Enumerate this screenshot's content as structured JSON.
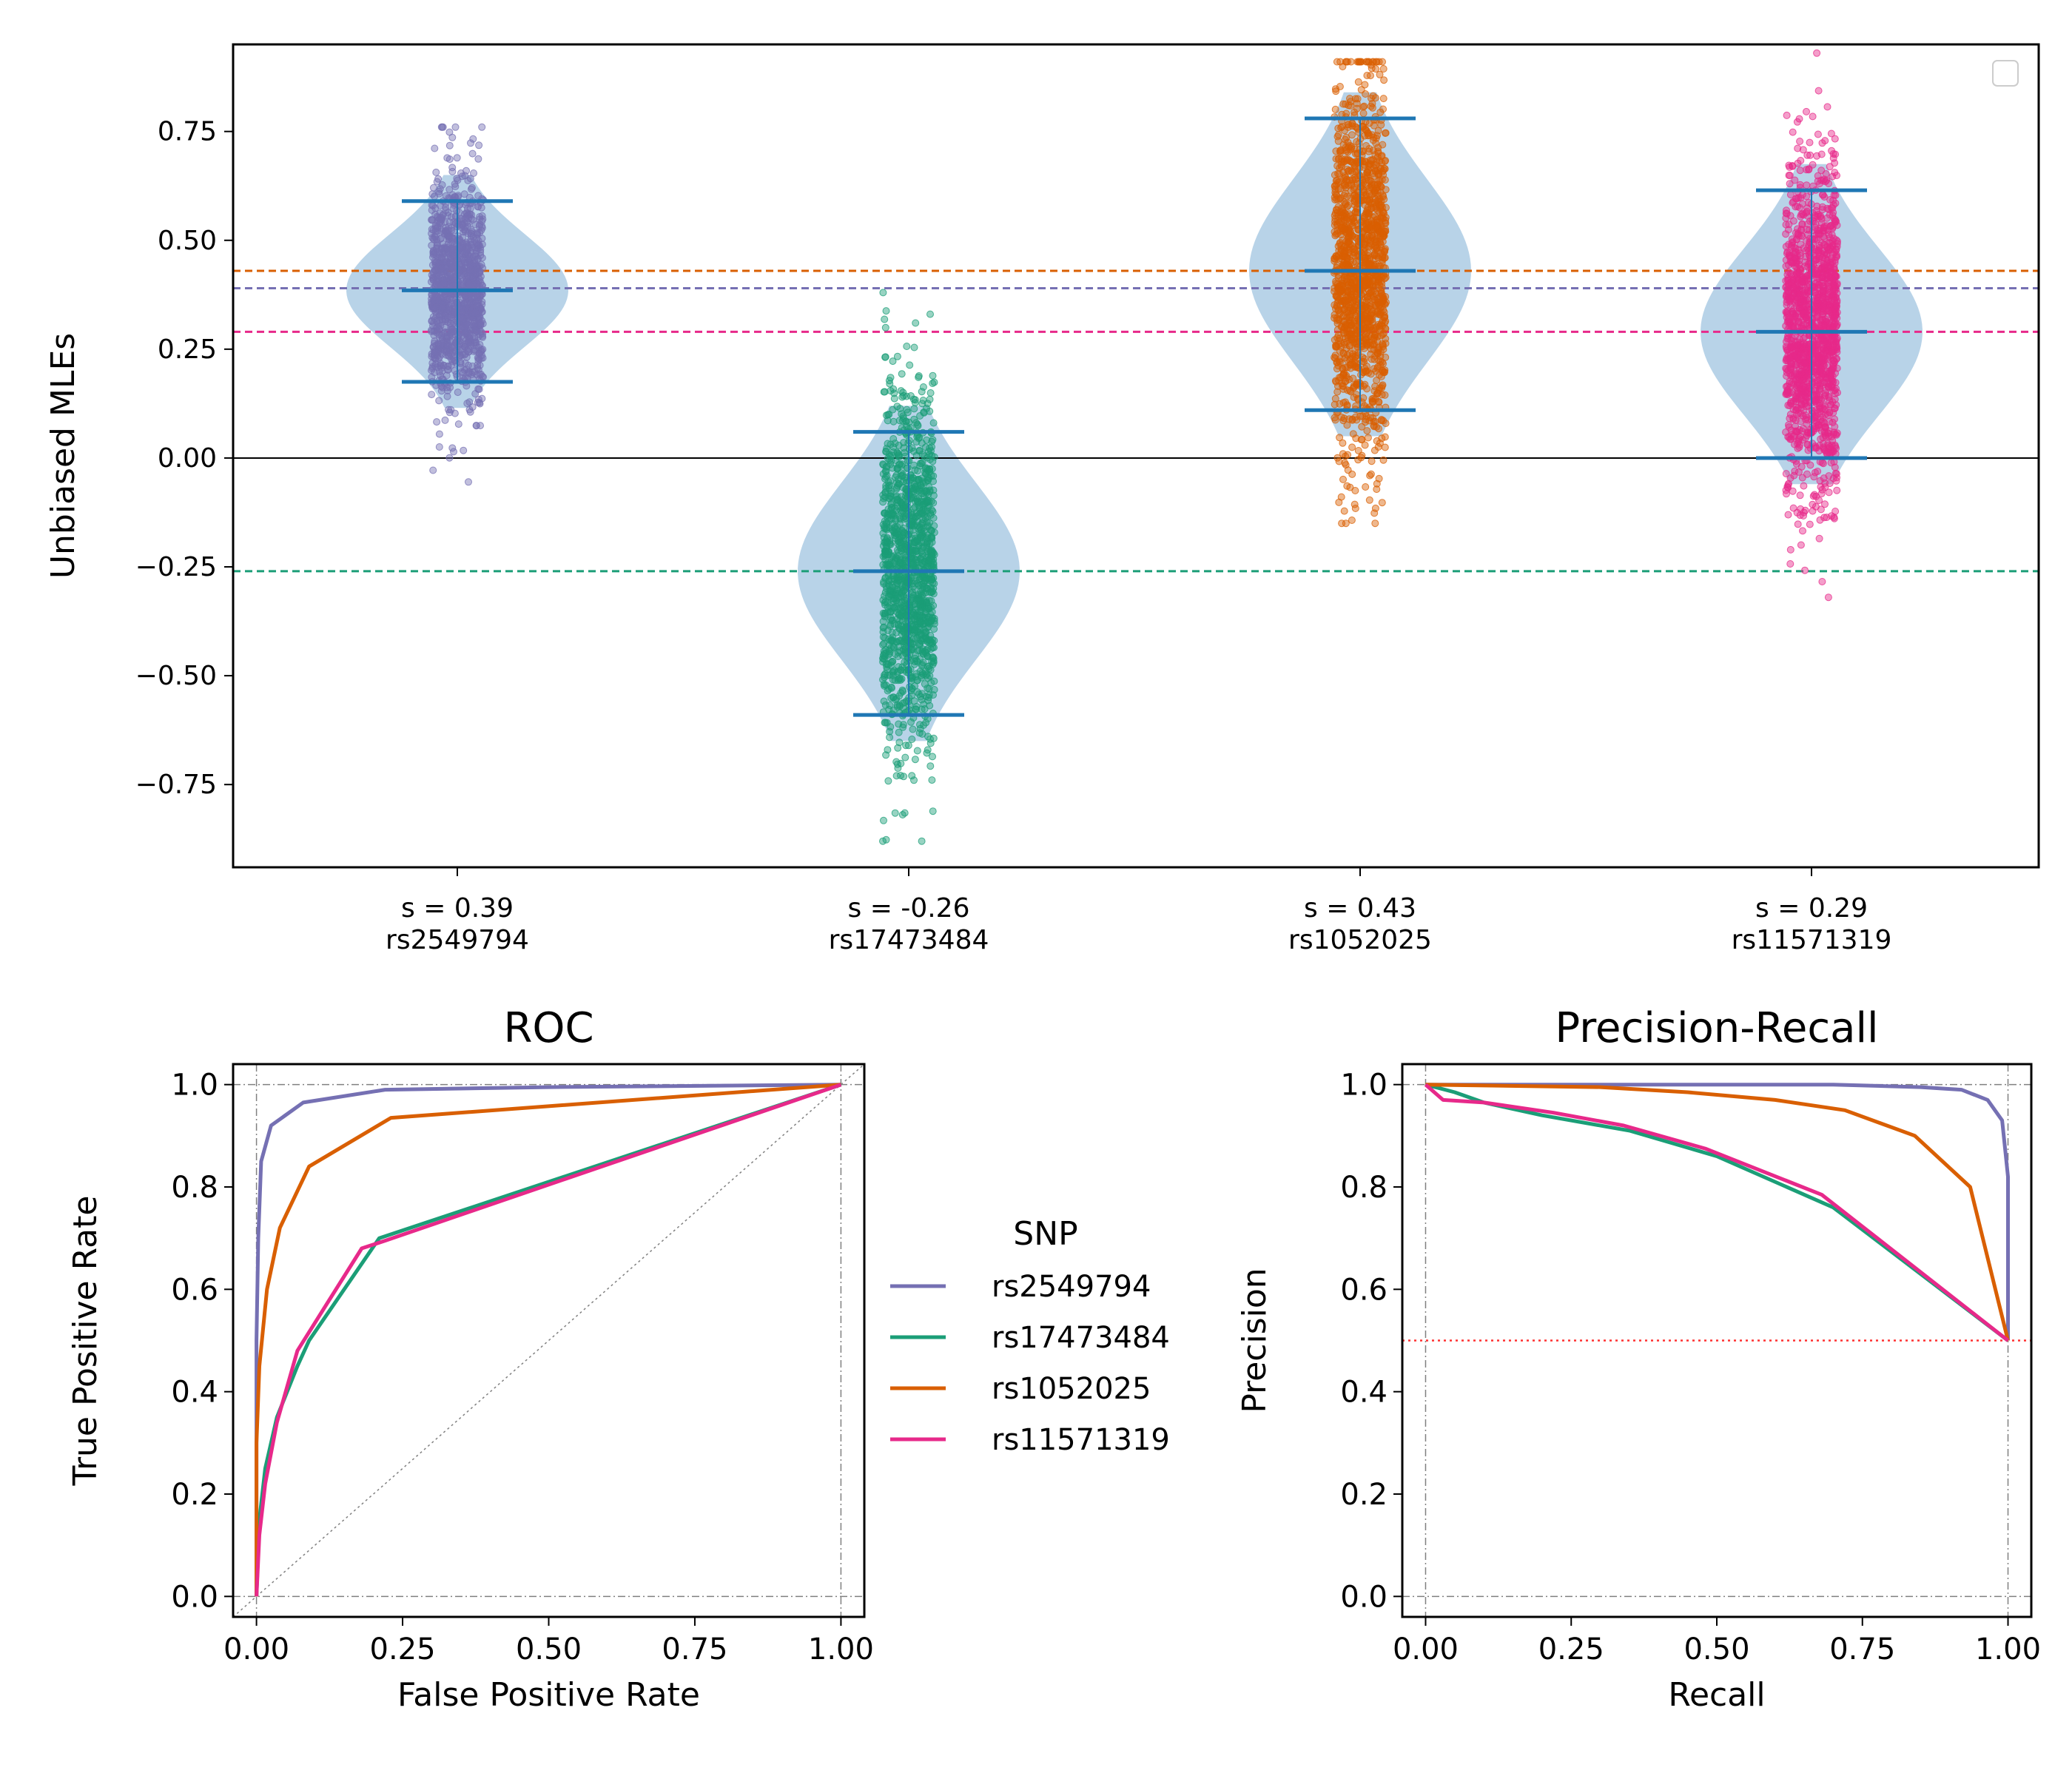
{
  "chart_data": [
    {
      "type": "violin",
      "title": "",
      "ylabel": "Unbiased MLEs",
      "xlabel": "",
      "ylim": [
        -0.94,
        0.95
      ],
      "yticks": [
        0.75,
        0.5,
        0.25,
        0.0,
        -0.25,
        -0.5,
        -0.75
      ],
      "ytick_labels": [
        "0.75",
        "0.50",
        "0.25",
        "0.00",
        "−0.25",
        "−0.50",
        "−0.75"
      ],
      "zero_line": 0.0,
      "legend": "top-right (empty)",
      "groups": [
        {
          "tick_label_1": "s = 0.39",
          "tick_label_2": "rs2549794",
          "s": 0.39,
          "color": "#7570b3",
          "mean": 0.385,
          "q_low": 0.175,
          "q_high": 0.59,
          "points_min": -0.055,
          "points_max": 0.76,
          "n_points": 1300
        },
        {
          "tick_label_1": "s = -0.26",
          "tick_label_2": "rs17473484",
          "s": -0.26,
          "color": "#1b9e77",
          "mean": -0.26,
          "q_low": -0.59,
          "q_high": 0.06,
          "points_min": -0.88,
          "points_max": 0.38,
          "n_points": 1400
        },
        {
          "tick_label_1": "s = 0.43",
          "tick_label_2": "rs1052025",
          "s": 0.43,
          "color": "#d95f02",
          "mean": 0.43,
          "q_low": 0.11,
          "q_high": 0.78,
          "points_min": -0.15,
          "points_max": 0.91,
          "n_points": 1500
        },
        {
          "tick_label_1": "s = 0.29",
          "tick_label_2": "rs11571319",
          "s": 0.29,
          "color": "#e7298a",
          "mean": 0.29,
          "q_low": 0.0,
          "q_high": 0.615,
          "points_min": -0.32,
          "points_max": 0.93,
          "n_points": 1500
        }
      ]
    },
    {
      "type": "line",
      "title": "ROC",
      "xlabel": "False Positive Rate",
      "ylabel": "True Positive Rate",
      "xlim": [
        -0.04,
        1.04
      ],
      "ylim": [
        -0.04,
        1.04
      ],
      "xticks": [
        0.0,
        0.25,
        0.5,
        0.75,
        1.0
      ],
      "xtick_labels": [
        "0.00",
        "0.25",
        "0.50",
        "0.75",
        "1.00"
      ],
      "yticks": [
        0.0,
        0.2,
        0.4,
        0.6,
        0.8,
        1.0
      ],
      "ytick_labels": [
        "0.0",
        "0.2",
        "0.4",
        "0.6",
        "0.8",
        "1.0"
      ],
      "series": [
        {
          "name": "rs2549794",
          "color": "#7570b3",
          "x": [
            0,
            0,
            0.003,
            0.008,
            0.025,
            0.08,
            0.22,
            0.5,
            1.0
          ],
          "y": [
            0,
            0.5,
            0.7,
            0.85,
            0.92,
            0.965,
            0.99,
            0.995,
            1.0
          ]
        },
        {
          "name": "rs17473484",
          "color": "#1b9e77",
          "x": [
            0,
            0.005,
            0.015,
            0.035,
            0.07,
            0.09,
            0.21,
            1.0
          ],
          "y": [
            0,
            0.15,
            0.25,
            0.35,
            0.45,
            0.5,
            0.7,
            1.0
          ]
        },
        {
          "name": "rs1052025",
          "color": "#d95f02",
          "x": [
            0,
            0,
            0.005,
            0.018,
            0.04,
            0.09,
            0.23,
            1.0
          ],
          "y": [
            0,
            0.3,
            0.45,
            0.6,
            0.72,
            0.84,
            0.935,
            1.0
          ]
        },
        {
          "name": "rs11571319",
          "color": "#e7298a",
          "x": [
            0,
            0.005,
            0.015,
            0.035,
            0.07,
            0.18,
            0.22,
            1.0
          ],
          "y": [
            0,
            0.12,
            0.22,
            0.34,
            0.48,
            0.68,
            0.695,
            1.0
          ]
        }
      ]
    },
    {
      "type": "line",
      "title": "Precision-Recall",
      "xlabel": "Recall",
      "ylabel": "Precision",
      "xlim": [
        -0.04,
        1.04
      ],
      "ylim": [
        -0.04,
        1.04
      ],
      "xticks": [
        0.0,
        0.25,
        0.5,
        0.75,
        1.0
      ],
      "xtick_labels": [
        "0.00",
        "0.25",
        "0.50",
        "0.75",
        "1.00"
      ],
      "yticks": [
        0.0,
        0.2,
        0.4,
        0.6,
        0.8,
        1.0
      ],
      "ytick_labels": [
        "0.0",
        "0.2",
        "0.4",
        "0.6",
        "0.8",
        "1.0"
      ],
      "baseline": 0.5,
      "series": [
        {
          "name": "rs2549794",
          "color": "#7570b3",
          "x": [
            0,
            0.5,
            0.7,
            0.85,
            0.92,
            0.965,
            0.99,
            1.0,
            1.0
          ],
          "y": [
            1.0,
            1.0,
            1.0,
            0.995,
            0.99,
            0.97,
            0.93,
            0.82,
            0.5
          ]
        },
        {
          "name": "rs17473484",
          "color": "#1b9e77",
          "x": [
            0,
            0.05,
            0.1,
            0.2,
            0.35,
            0.5,
            0.7,
            1.0
          ],
          "y": [
            1.0,
            0.985,
            0.965,
            0.94,
            0.91,
            0.86,
            0.76,
            0.5
          ]
        },
        {
          "name": "rs1052025",
          "color": "#d95f02",
          "x": [
            0,
            0.3,
            0.45,
            0.6,
            0.72,
            0.84,
            0.935,
            1.0
          ],
          "y": [
            1.0,
            0.995,
            0.985,
            0.97,
            0.95,
            0.9,
            0.8,
            0.5
          ]
        },
        {
          "name": "rs11571319",
          "color": "#e7298a",
          "x": [
            0,
            0.03,
            0.1,
            0.22,
            0.34,
            0.48,
            0.68,
            1.0
          ],
          "y": [
            1.0,
            0.97,
            0.965,
            0.945,
            0.92,
            0.875,
            0.785,
            0.5
          ]
        }
      ]
    }
  ],
  "legend": {
    "title": "SNP",
    "entries": [
      {
        "label": "rs2549794",
        "color": "#7570b3"
      },
      {
        "label": "rs17473484",
        "color": "#1b9e77"
      },
      {
        "label": "rs1052025",
        "color": "#d95f02"
      },
      {
        "label": "rs11571319",
        "color": "#e7298a"
      }
    ]
  }
}
